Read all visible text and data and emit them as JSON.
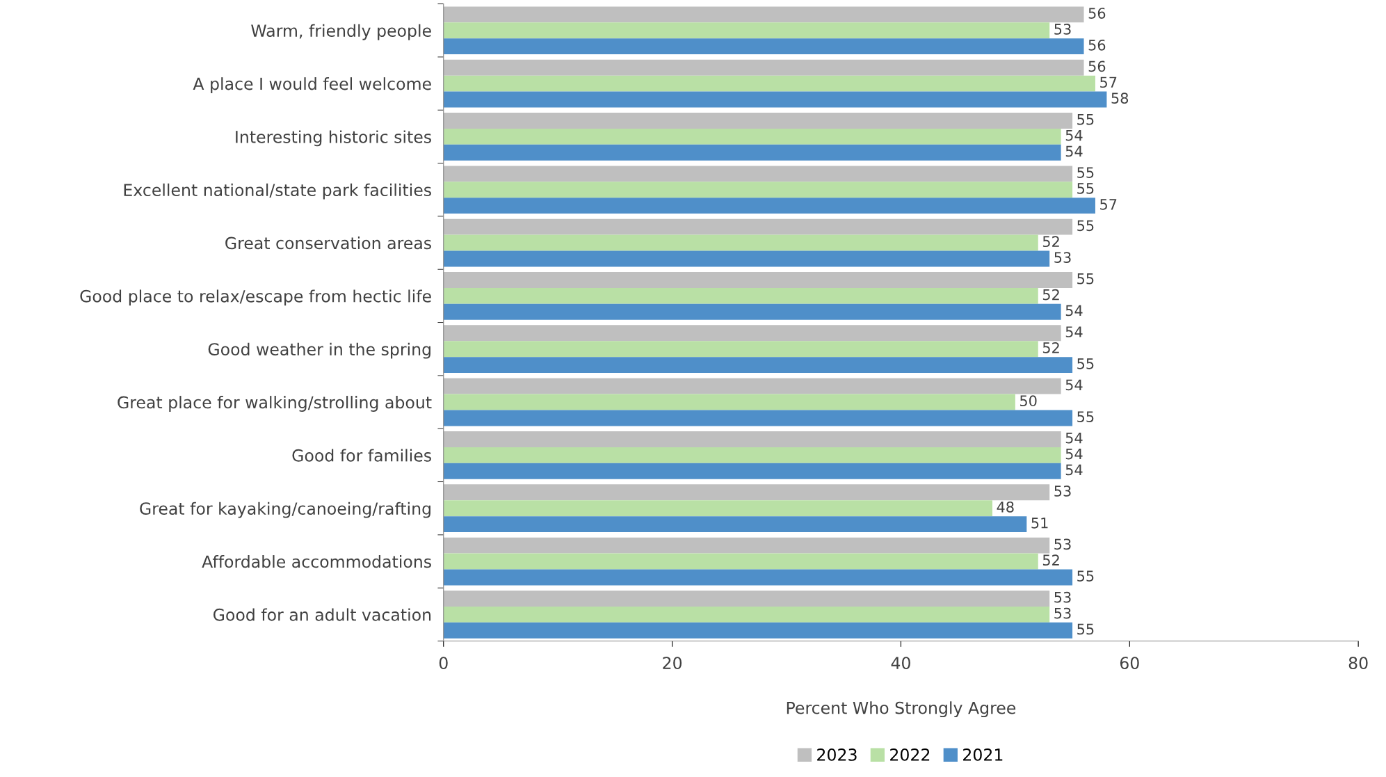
{
  "chart_data": {
    "type": "bar",
    "orientation": "horizontal",
    "xlabel": "Percent Who Strongly Agree",
    "categories": [
      "Warm, friendly people",
      "A place I would feel welcome",
      "Interesting historic sites",
      "Excellent national/state park facilities",
      "Great conservation areas",
      "Good place to relax/escape from hectic life",
      "Good weather in the spring",
      "Great place for walking/strolling about",
      "Good for families",
      "Great for kayaking/canoeing/rafting",
      "Affordable accommodations",
      "Good for an adult vacation"
    ],
    "series": [
      {
        "name": "2023",
        "color": "#bfbfbf",
        "values": [
          56,
          56,
          55,
          55,
          55,
          55,
          54,
          54,
          54,
          53,
          53,
          53
        ]
      },
      {
        "name": "2022",
        "color": "#b9e0a5",
        "values": [
          53,
          57,
          54,
          55,
          52,
          52,
          52,
          50,
          54,
          48,
          52,
          53
        ]
      },
      {
        "name": "2021",
        "color": "#4f8fc9",
        "values": [
          56,
          58,
          54,
          57,
          53,
          54,
          55,
          55,
          54,
          51,
          55,
          55
        ]
      }
    ],
    "xlim": [
      0,
      80
    ],
    "xticks": [
      0,
      20,
      40,
      60,
      80
    ],
    "data_labels": true,
    "grid": false,
    "legend": "bottom"
  }
}
